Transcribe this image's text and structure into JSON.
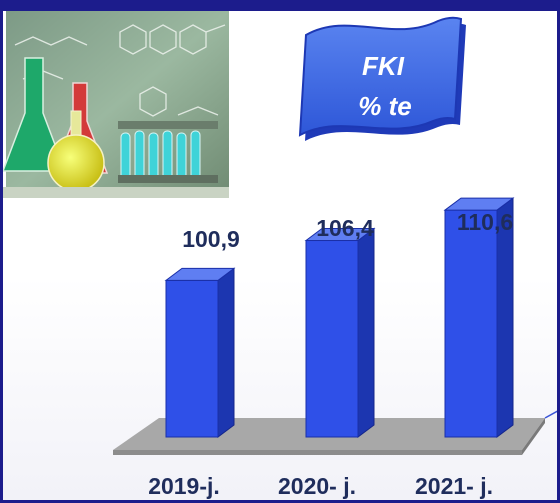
{
  "banner": {
    "line1": "FKI",
    "line2": "% te"
  },
  "chart_data": {
    "type": "bar",
    "categories": [
      "2019-j.",
      "2020- j.",
      "2021- j."
    ],
    "values": [
      100.9,
      106.4,
      110.6
    ],
    "value_labels": [
      "100,9",
      "106,4",
      "110,6"
    ],
    "bar_color": "#2f50e8",
    "floor_color": "#a8a8a8",
    "label_color": "#1f2d5c"
  }
}
